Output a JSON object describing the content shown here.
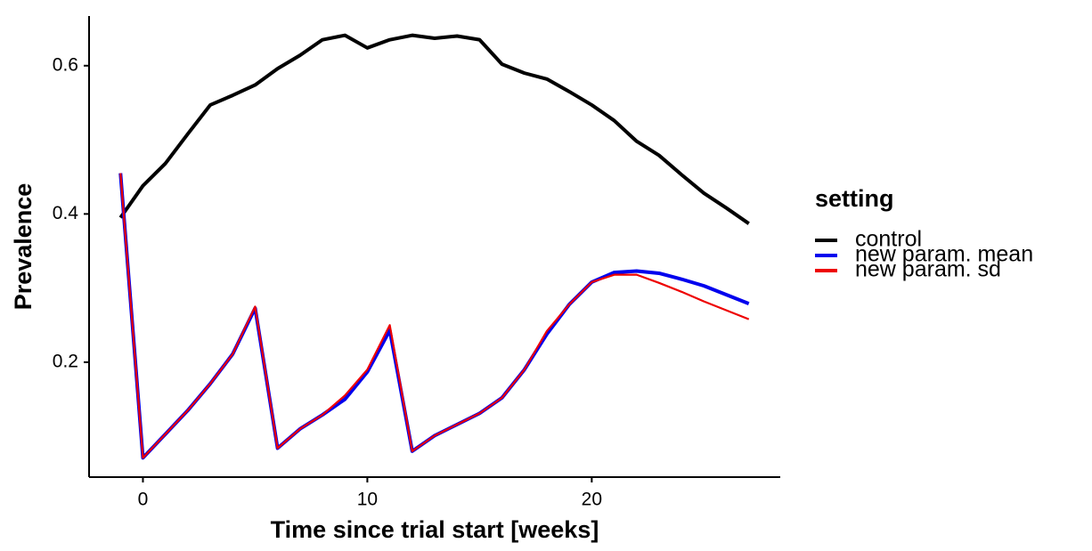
{
  "chart_data": {
    "type": "line",
    "x_label": "Time since trial start [weeks]",
    "y_label": "Prevalence",
    "legend_title": "setting",
    "legend_position": "right",
    "x": [
      -1,
      0,
      1,
      2,
      3,
      4,
      5,
      6,
      7,
      8,
      9,
      10,
      11,
      12,
      13,
      14,
      15,
      16,
      17,
      18,
      19,
      20,
      21,
      22,
      23,
      24,
      25,
      26,
      27
    ],
    "series": [
      {
        "name": "control",
        "color": "#000000",
        "values": [
          0.395,
          0.438,
          0.468,
          0.508,
          0.547,
          0.56,
          0.574,
          0.596,
          0.614,
          0.635,
          0.641,
          0.624,
          0.635,
          0.641,
          0.637,
          0.64,
          0.635,
          0.602,
          0.59,
          0.582,
          0.565,
          0.547,
          0.526,
          0.498,
          0.479,
          0.453,
          0.428,
          0.408,
          0.387
        ]
      },
      {
        "name": "new param. mean",
        "color": "#0000ee",
        "values": [
          0.455,
          0.071,
          0.103,
          0.135,
          0.171,
          0.211,
          0.273,
          0.084,
          0.11,
          0.129,
          0.15,
          0.187,
          0.243,
          0.08,
          0.101,
          0.116,
          0.131,
          0.152,
          0.19,
          0.238,
          0.278,
          0.308,
          0.321,
          0.323,
          0.32,
          0.312,
          0.303,
          0.291,
          0.279
        ]
      },
      {
        "name": "new param. sd",
        "color": "#ee0000",
        "values": [
          0.455,
          0.071,
          0.103,
          0.135,
          0.171,
          0.211,
          0.275,
          0.084,
          0.11,
          0.129,
          0.155,
          0.19,
          0.25,
          0.08,
          0.101,
          0.116,
          0.131,
          0.152,
          0.19,
          0.242,
          0.278,
          0.308,
          0.318,
          0.318,
          0.307,
          0.295,
          0.282,
          0.27,
          0.258
        ]
      }
    ],
    "xlim": [
      -2.4,
      28.4
    ],
    "xticks": [
      0,
      10,
      20
    ],
    "ylim": [
      0.045,
      0.667
    ],
    "yticks": [
      0.2,
      0.4,
      0.6
    ],
    "grid": false
  }
}
